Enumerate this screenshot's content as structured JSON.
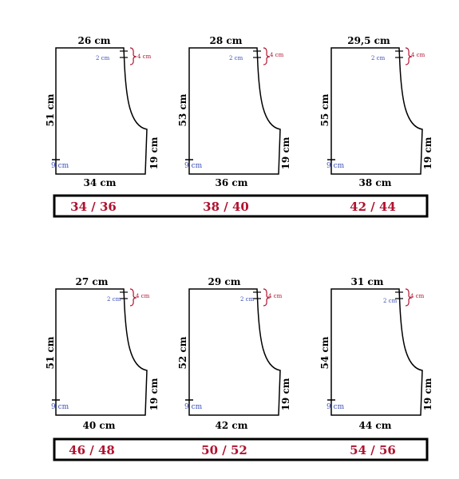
{
  "patterns": [
    {
      "top": "26 cm",
      "height": "51 cm",
      "bottom": "34 cm",
      "inseam": "19 cm",
      "rise_small": "2 cm",
      "rise_offset": "4 cm",
      "hip_mark": "9 cm"
    },
    {
      "top": "28 cm",
      "height": "53 cm",
      "bottom": "36 cm",
      "inseam": "19 cm",
      "rise_small": "2 cm",
      "rise_offset": "4 cm",
      "hip_mark": "9 cm"
    },
    {
      "top": "29,5 cm",
      "height": "55 cm",
      "bottom": "38 cm",
      "inseam": "19 cm",
      "rise_small": "2 cm",
      "rise_offset": "4 cm",
      "hip_mark": "9 cm"
    },
    {
      "top": "27 cm",
      "height": "51 cm",
      "bottom": "40 cm",
      "inseam": "19 cm",
      "rise_small": "2 cm",
      "rise_offset": "4 cm",
      "hip_mark": "9 cm"
    },
    {
      "top": "29 cm",
      "height": "52 cm",
      "bottom": "42 cm",
      "inseam": "19 cm",
      "rise_small": "2 cm",
      "rise_offset": "4 cm",
      "hip_mark": "9 cm"
    },
    {
      "top": "31 cm",
      "height": "54 cm",
      "bottom": "44 cm",
      "inseam": "19 cm",
      "rise_small": "2 cm",
      "rise_offset": "4 cm",
      "hip_mark": "9 cm"
    }
  ],
  "size_rows": [
    [
      "34 / 36",
      "38 / 40",
      "42 / 44"
    ],
    [
      "46 / 48",
      "50 / 52",
      "54 / 56"
    ]
  ],
  "colors": {
    "line": "#000000",
    "red": "#b0122e",
    "blue": "#3b4fb8"
  }
}
